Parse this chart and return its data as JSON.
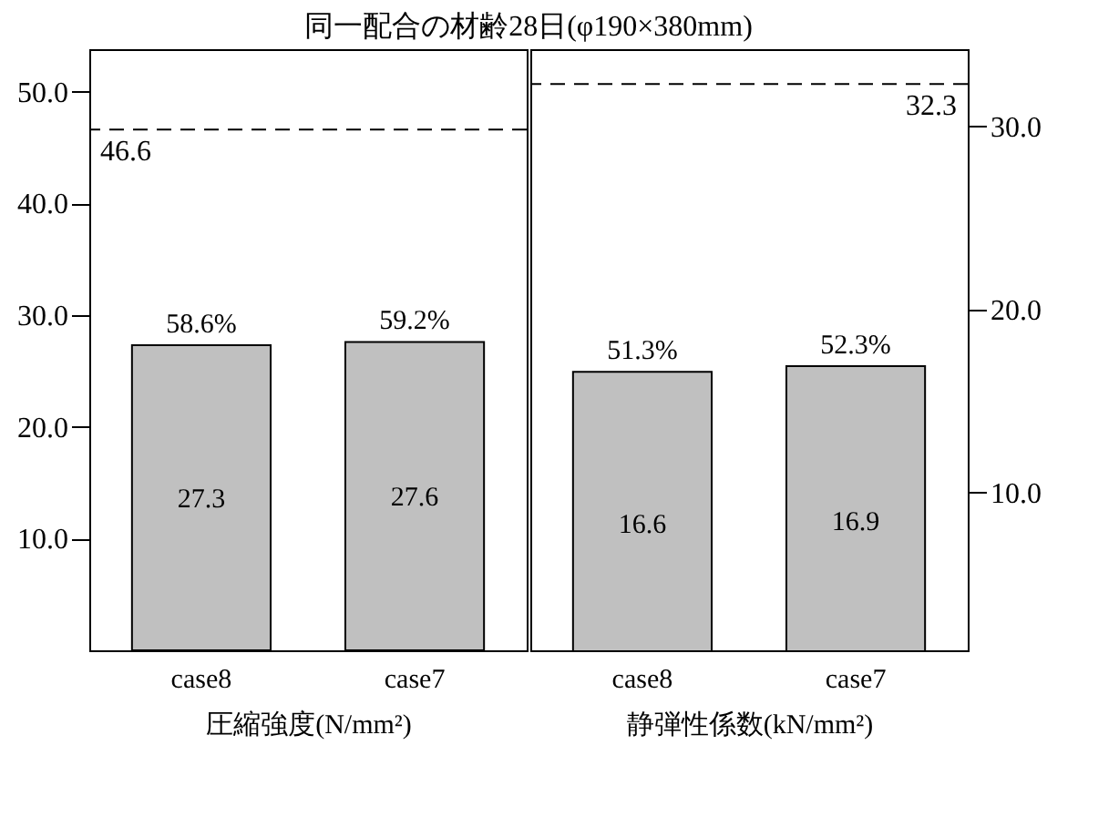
{
  "chart_data": [
    {
      "type": "bar",
      "title": "同一配合の材齢28日(φ190×380mm)",
      "xlabel": "圧縮強度(N/mm²)",
      "categories": [
        "case8",
        "case7"
      ],
      "series": [
        {
          "color": "#c0c0c0",
          "values": [
            27.3,
            27.6
          ]
        }
      ],
      "data_labels": true,
      "value_labels": [
        "58.6%",
        "59.2%"
      ],
      "ylim": [
        0,
        53.8
      ],
      "yticks": [
        {
          "value": 10,
          "label": "10.0"
        },
        {
          "value": 20,
          "label": "20.0"
        },
        {
          "value": 30,
          "label": "30.0"
        },
        {
          "value": 40,
          "label": "40.0"
        },
        {
          "value": 50,
          "label": "50.0"
        }
      ],
      "ref_lines": [
        {
          "axis": "y",
          "value": 46.6,
          "label": "46.6",
          "line_style": "dashed"
        }
      ]
    },
    {
      "type": "bar",
      "xlabel": "静弾性係数(kN/mm²)",
      "categories": [
        "case8",
        "case7"
      ],
      "series": [
        {
          "color": "#c0c0c0",
          "values": [
            16.6,
            16.9
          ],
          "axis": "y2"
        }
      ],
      "data_labels": true,
      "value_labels": [
        "51.3%",
        "52.3%"
      ],
      "y2lim": [
        1.4,
        34.2
      ],
      "y2ticks": [
        {
          "value": 10,
          "label": "10.0"
        },
        {
          "value": 20,
          "label": "20.0"
        },
        {
          "value": 30,
          "label": "30.0"
        }
      ],
      "ref_lines": [
        {
          "axis": "y2",
          "value": 32.3,
          "label": "32.3",
          "line_style": "dashed"
        }
      ]
    }
  ]
}
